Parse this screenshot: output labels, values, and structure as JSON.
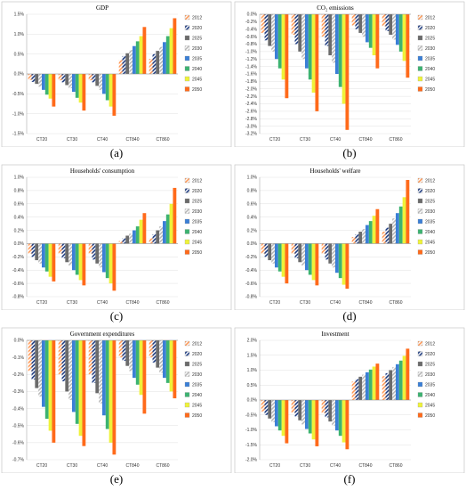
{
  "years": [
    "2012",
    "2020",
    "2025",
    "2030",
    "2035",
    "2040",
    "2045",
    "2050"
  ],
  "colors": {
    "2012": "#ff9b5a",
    "2020": "#1f3d82",
    "2025": "#6b6b6b",
    "2030": "#b8b8b8",
    "2035": "#3b7fd6",
    "2040": "#3db371",
    "2045": "#eef23a",
    "2050": "#ff6a1a"
  },
  "patterned_years": [
    "2012",
    "2020",
    "2030"
  ],
  "captions": [
    "(a)",
    "(b)",
    "(c)",
    "(d)",
    "(e)",
    "(f)"
  ],
  "chart_data": [
    {
      "type": "bar",
      "title": "GDP",
      "categories": [
        "CT20",
        "CT30",
        "CT40",
        "CT840",
        "CT860"
      ],
      "ylim": [
        -1.5,
        1.5
      ],
      "yticks": [
        "1.5%",
        "1.0%",
        "0.5%",
        "0.0%",
        "-0.5%",
        "-1.0%",
        "-1.5%"
      ],
      "ytick_values": [
        1.5,
        1.0,
        0.5,
        0.0,
        -0.5,
        -1.0,
        -1.5
      ],
      "series": [
        {
          "name": "2012",
          "values": [
            -0.15,
            -0.16,
            -0.16,
            0.35,
            0.38
          ]
        },
        {
          "name": "2020",
          "values": [
            -0.2,
            -0.21,
            -0.21,
            0.45,
            0.5
          ]
        },
        {
          "name": "2025",
          "values": [
            -0.25,
            -0.28,
            -0.3,
            0.52,
            0.58
          ]
        },
        {
          "name": "2030",
          "values": [
            -0.32,
            -0.36,
            -0.4,
            0.6,
            0.68
          ]
        },
        {
          "name": "2035",
          "values": [
            -0.4,
            -0.45,
            -0.5,
            0.7,
            0.8
          ]
        },
        {
          "name": "2040",
          "values": [
            -0.52,
            -0.6,
            -0.66,
            0.82,
            0.95
          ]
        },
        {
          "name": "2045",
          "values": [
            -0.62,
            -0.72,
            -0.82,
            0.95,
            1.15
          ]
        },
        {
          "name": "2050",
          "values": [
            -0.82,
            -0.92,
            -1.05,
            1.18,
            1.4
          ]
        }
      ]
    },
    {
      "type": "bar",
      "title": "CO₂ emissions",
      "categories": [
        "CT20",
        "CT30",
        "CT40",
        "CT840",
        "CT860"
      ],
      "ylim": [
        -3.2,
        0.0
      ],
      "yticks": [
        "0.0%",
        "-0.2%",
        "-0.4%",
        "-0.6%",
        "-0.8%",
        "-1.0%",
        "-1.2%",
        "-1.4%",
        "-1.6%",
        "-1.8%",
        "-2.0%",
        "-2.2%",
        "-2.4%",
        "-2.6%",
        "-2.8%",
        "-3.0%",
        "-3.2%"
      ],
      "ytick_values": [
        0.0,
        -0.2,
        -0.4,
        -0.6,
        -0.8,
        -1.0,
        -1.2,
        -1.4,
        -1.6,
        -1.8,
        -2.0,
        -2.2,
        -2.4,
        -2.6,
        -2.8,
        -3.0,
        -3.2
      ],
      "series": [
        {
          "name": "2012",
          "values": [
            -0.5,
            -0.55,
            -0.6,
            -0.3,
            -0.32
          ]
        },
        {
          "name": "2020",
          "values": [
            -0.7,
            -0.8,
            -0.85,
            -0.4,
            -0.45
          ]
        },
        {
          "name": "2025",
          "values": [
            -0.85,
            -1.0,
            -1.1,
            -0.5,
            -0.55
          ]
        },
        {
          "name": "2030",
          "values": [
            -1.0,
            -1.2,
            -1.3,
            -0.6,
            -0.68
          ]
        },
        {
          "name": "2035",
          "values": [
            -1.2,
            -1.45,
            -1.6,
            -0.75,
            -0.82
          ]
        },
        {
          "name": "2040",
          "values": [
            -1.45,
            -1.75,
            -1.95,
            -0.9,
            -1.0
          ]
        },
        {
          "name": "2045",
          "values": [
            -1.75,
            -2.1,
            -2.4,
            -1.1,
            -1.25
          ]
        },
        {
          "name": "2050",
          "values": [
            -2.25,
            -2.6,
            -3.1,
            -1.45,
            -1.7
          ]
        }
      ]
    },
    {
      "type": "bar",
      "title": "Households' consumption",
      "categories": [
        "CT20",
        "CT30",
        "CT40",
        "CT840",
        "CT860"
      ],
      "ylim": [
        -0.8,
        1.0
      ],
      "yticks": [
        "1.0%",
        "0.8%",
        "0.6%",
        "0.4%",
        "0.2%",
        "0.0%",
        "-0.2%",
        "-0.4%",
        "-0.6%",
        "-0.8%"
      ],
      "ytick_values": [
        1.0,
        0.8,
        0.6,
        0.4,
        0.2,
        0.0,
        -0.2,
        -0.4,
        -0.6,
        -0.8
      ],
      "series": [
        {
          "name": "2012",
          "values": [
            -0.15,
            -0.15,
            -0.15,
            0.04,
            0.08
          ]
        },
        {
          "name": "2020",
          "values": [
            -0.2,
            -0.22,
            -0.24,
            0.08,
            0.14
          ]
        },
        {
          "name": "2025",
          "values": [
            -0.25,
            -0.28,
            -0.3,
            0.12,
            0.2
          ]
        },
        {
          "name": "2030",
          "values": [
            -0.3,
            -0.33,
            -0.36,
            0.15,
            0.26
          ]
        },
        {
          "name": "2035",
          "values": [
            -0.36,
            -0.4,
            -0.43,
            0.2,
            0.34
          ]
        },
        {
          "name": "2040",
          "values": [
            -0.42,
            -0.47,
            -0.52,
            0.26,
            0.44
          ]
        },
        {
          "name": "2045",
          "values": [
            -0.5,
            -0.55,
            -0.6,
            0.36,
            0.6
          ]
        },
        {
          "name": "2050",
          "values": [
            -0.57,
            -0.63,
            -0.71,
            0.46,
            0.84
          ]
        }
      ]
    },
    {
      "type": "bar",
      "title": "Households' welfare",
      "categories": [
        "CT20",
        "CT30",
        "CT40",
        "CT840",
        "CT860"
      ],
      "ylim": [
        -0.8,
        1.0
      ],
      "yticks": [
        "1.0%",
        "0.8%",
        "0.6%",
        "0.4%",
        "0.2%",
        "0.0%",
        "-0.2%",
        "-0.4%",
        "-0.6%",
        "-0.8%"
      ],
      "ytick_values": [
        1.0,
        0.8,
        0.6,
        0.4,
        0.2,
        0.0,
        -0.2,
        -0.4,
        -0.6,
        -0.8
      ],
      "series": [
        {
          "name": "2012",
          "values": [
            -0.15,
            -0.15,
            -0.15,
            0.1,
            0.18
          ]
        },
        {
          "name": "2020",
          "values": [
            -0.2,
            -0.22,
            -0.24,
            0.14,
            0.24
          ]
        },
        {
          "name": "2025",
          "values": [
            -0.25,
            -0.28,
            -0.3,
            0.18,
            0.3
          ]
        },
        {
          "name": "2030",
          "values": [
            -0.3,
            -0.33,
            -0.36,
            0.22,
            0.38
          ]
        },
        {
          "name": "2035",
          "values": [
            -0.36,
            -0.4,
            -0.44,
            0.28,
            0.46
          ]
        },
        {
          "name": "2040",
          "values": [
            -0.42,
            -0.47,
            -0.52,
            0.34,
            0.56
          ]
        },
        {
          "name": "2045",
          "values": [
            -0.5,
            -0.55,
            -0.62,
            0.42,
            0.7
          ]
        },
        {
          "name": "2050",
          "values": [
            -0.6,
            -0.63,
            -0.68,
            0.52,
            0.96
          ]
        }
      ]
    },
    {
      "type": "bar",
      "title": "Government  expenditures",
      "categories": [
        "CT20",
        "CT30",
        "CT40",
        "CT840",
        "CT860"
      ],
      "ylim": [
        -0.7,
        0.0
      ],
      "yticks": [
        "0.0%",
        "-0.1%",
        "-0.2%",
        "-0.3%",
        "-0.4%",
        "-0.5%",
        "-0.6%",
        "-0.7%"
      ],
      "ytick_values": [
        0.0,
        -0.1,
        -0.2,
        -0.3,
        -0.4,
        -0.5,
        -0.6,
        -0.7
      ],
      "series": [
        {
          "name": "2012",
          "values": [
            -0.18,
            -0.2,
            -0.2,
            -0.1,
            -0.1
          ]
        },
        {
          "name": "2020",
          "values": [
            -0.23,
            -0.24,
            -0.25,
            -0.12,
            -0.13
          ]
        },
        {
          "name": "2025",
          "values": [
            -0.28,
            -0.3,
            -0.31,
            -0.15,
            -0.16
          ]
        },
        {
          "name": "2030",
          "values": [
            -0.33,
            -0.35,
            -0.37,
            -0.18,
            -0.19
          ]
        },
        {
          "name": "2035",
          "values": [
            -0.39,
            -0.42,
            -0.44,
            -0.22,
            -0.22
          ]
        },
        {
          "name": "2040",
          "values": [
            -0.46,
            -0.49,
            -0.52,
            -0.26,
            -0.25
          ]
        },
        {
          "name": "2045",
          "values": [
            -0.53,
            -0.56,
            -0.6,
            -0.32,
            -0.3
          ]
        },
        {
          "name": "2050",
          "values": [
            -0.6,
            -0.62,
            -0.67,
            -0.43,
            -0.34
          ]
        }
      ]
    },
    {
      "type": "bar",
      "title": "Investment",
      "categories": [
        "CT20",
        "CT30",
        "CT40",
        "CT840",
        "CT860"
      ],
      "ylim": [
        -2.0,
        2.0
      ],
      "yticks": [
        "2.0%",
        "1.5%",
        "1.0%",
        "0.5%",
        "0.0%",
        "-0.5%",
        "-1.0%",
        "-1.5%",
        "-2.0%"
      ],
      "ytick_values": [
        2.0,
        1.5,
        1.0,
        0.5,
        0.0,
        -0.5,
        -1.0,
        -1.5,
        -2.0
      ],
      "series": [
        {
          "name": "2012",
          "values": [
            -0.38,
            -0.42,
            -0.44,
            0.62,
            0.8
          ]
        },
        {
          "name": "2020",
          "values": [
            -0.5,
            -0.55,
            -0.58,
            0.7,
            0.9
          ]
        },
        {
          "name": "2025",
          "values": [
            -0.62,
            -0.68,
            -0.72,
            0.78,
            1.0
          ]
        },
        {
          "name": "2030",
          "values": [
            -0.74,
            -0.82,
            -0.86,
            0.85,
            1.1
          ]
        },
        {
          "name": "2035",
          "values": [
            -0.88,
            -0.97,
            -1.02,
            0.93,
            1.2
          ]
        },
        {
          "name": "2040",
          "values": [
            -1.02,
            -1.12,
            -1.2,
            1.02,
            1.32
          ]
        },
        {
          "name": "2045",
          "values": [
            -1.2,
            -1.32,
            -1.42,
            1.12,
            1.48
          ]
        },
        {
          "name": "2050",
          "values": [
            -1.45,
            -1.55,
            -1.65,
            1.22,
            1.72
          ]
        }
      ]
    }
  ]
}
